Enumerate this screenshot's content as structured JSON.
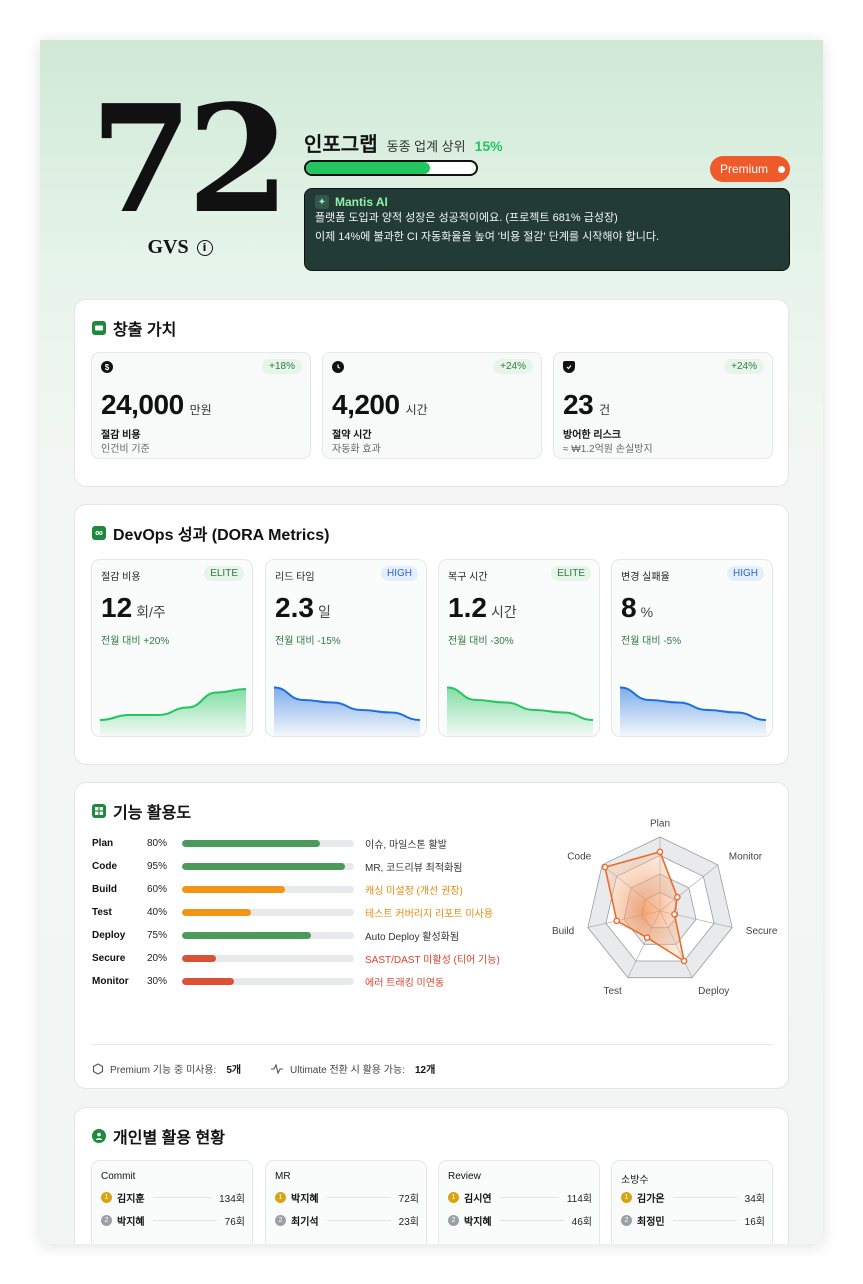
{
  "hero": {
    "score": "72",
    "score_label": "GVS",
    "company": "인포그랩",
    "rank_text": "동종 업계 상위",
    "rank_pct": "15%",
    "progress": 0.73,
    "premium_label": "Premium"
  },
  "ai": {
    "title": "Mantis AI",
    "line1": "플랫폼 도입과 양적 성장은 성공적이에요. (프로젝트 681% 급성장)",
    "line2": "이제 14%에 불과한 CI 자동화율을 높여 '비용 절감' 단계를 시작해야 합니다."
  },
  "value": {
    "title": "창출 가치",
    "tiles": [
      {
        "icon": "dollar-icon",
        "badge": "+18%",
        "num": "24,000",
        "unit": "만원",
        "label": "절감 비용",
        "sub": "인건비 기준"
      },
      {
        "icon": "clock-icon",
        "badge": "+24%",
        "num": "4,200",
        "unit": "시간",
        "label": "절약 시간",
        "sub": "자동화 효과"
      },
      {
        "icon": "shield-icon",
        "badge": "+24%",
        "num": "23",
        "unit": "건",
        "label": "방어한 리스크",
        "sub": "≈ ₩1.2억원 손실방지"
      }
    ]
  },
  "dora": {
    "title": "DevOps 성과 (DORA Metrics)",
    "tiles": [
      {
        "label": "절감 비용",
        "badge": "ELITE",
        "num": "12",
        "unit": "회/주",
        "change": "전월 대비 +20%",
        "color": "#22c55e",
        "trend": [
          0.2,
          0.3,
          0.3,
          0.45,
          0.75,
          0.82
        ]
      },
      {
        "label": "리드 타임",
        "badge": "HIGH",
        "num": "2.3",
        "unit": "일",
        "change": "전월 대비 -15%",
        "color": "#1a6fe0",
        "trend": [
          0.85,
          0.6,
          0.55,
          0.4,
          0.35,
          0.2
        ]
      },
      {
        "label": "복구 시간",
        "badge": "ELITE",
        "num": "1.2",
        "unit": "시간",
        "change": "전월 대비 -30%",
        "color": "#22c55e",
        "trend": [
          0.85,
          0.6,
          0.55,
          0.4,
          0.35,
          0.2
        ]
      },
      {
        "label": "변경 실패율",
        "badge": "HIGH",
        "num": "8",
        "unit": "%",
        "change": "전월 대비 -5%",
        "color": "#1a6fe0",
        "trend": [
          0.85,
          0.6,
          0.55,
          0.4,
          0.35,
          0.2
        ]
      }
    ]
  },
  "features": {
    "title": "기능 활용도",
    "rows": [
      {
        "name": "Plan",
        "pct": "80%",
        "value": 0.8,
        "color": "#4a9a5c",
        "note": "이슈, 마일스톤 활발",
        "note_color": "#333333"
      },
      {
        "name": "Code",
        "pct": "95%",
        "value": 0.95,
        "color": "#4a9a5c",
        "note": "MR, 코드리뷰 최적화됨",
        "note_color": "#333333"
      },
      {
        "name": "Build",
        "pct": "60%",
        "value": 0.6,
        "color": "#f29414",
        "note": "캐싱 미설정 (개선 권장)",
        "note_color": "#e58a0c"
      },
      {
        "name": "Test",
        "pct": "40%",
        "value": 0.4,
        "color": "#f29414",
        "note": "테스트 커버리지 리포트 미사용",
        "note_color": "#e58a0c"
      },
      {
        "name": "Deploy",
        "pct": "75%",
        "value": 0.75,
        "color": "#4a9a5c",
        "note": "Auto Deploy 활성화됨",
        "note_color": "#333333"
      },
      {
        "name": "Secure",
        "pct": "20%",
        "value": 0.2,
        "color": "#dc5035",
        "note": "SAST/DAST 미활성 (티어 기능)",
        "note_color": "#d9432b"
      },
      {
        "name": "Monitor",
        "pct": "30%",
        "value": 0.3,
        "color": "#dc5035",
        "note": "에러 트래킹 미연동",
        "note_color": "#d9432b"
      }
    ],
    "radar_labels": [
      "Plan",
      "Monitor",
      "Secure",
      "Deploy",
      "Test",
      "Build",
      "Code"
    ],
    "foot1_label": "Premium 기능 중 미사용:",
    "foot1_value": "5개",
    "foot2_label": "Ultimate 전환 시 활용 가능:",
    "foot2_value": "12개"
  },
  "individual": {
    "title": "개인별 활용 현황",
    "tiles": [
      {
        "title": "Commit",
        "rows": [
          {
            "rank": "1",
            "name": "김지훈",
            "count": "134회"
          },
          {
            "rank": "2",
            "name": "박지혜",
            "count": "76회"
          }
        ]
      },
      {
        "title": "MR",
        "rows": [
          {
            "rank": "1",
            "name": "박지혜",
            "count": "72회"
          },
          {
            "rank": "2",
            "name": "최기석",
            "count": "23회"
          }
        ]
      },
      {
        "title": "Review",
        "rows": [
          {
            "rank": "1",
            "name": "김시연",
            "count": "114회"
          },
          {
            "rank": "2",
            "name": "박지혜",
            "count": "46회"
          }
        ]
      },
      {
        "title": "소방수",
        "rows": [
          {
            "rank": "1",
            "name": "김가온",
            "count": "34회"
          },
          {
            "rank": "2",
            "name": "최정민",
            "count": "16회"
          }
        ]
      }
    ]
  }
}
